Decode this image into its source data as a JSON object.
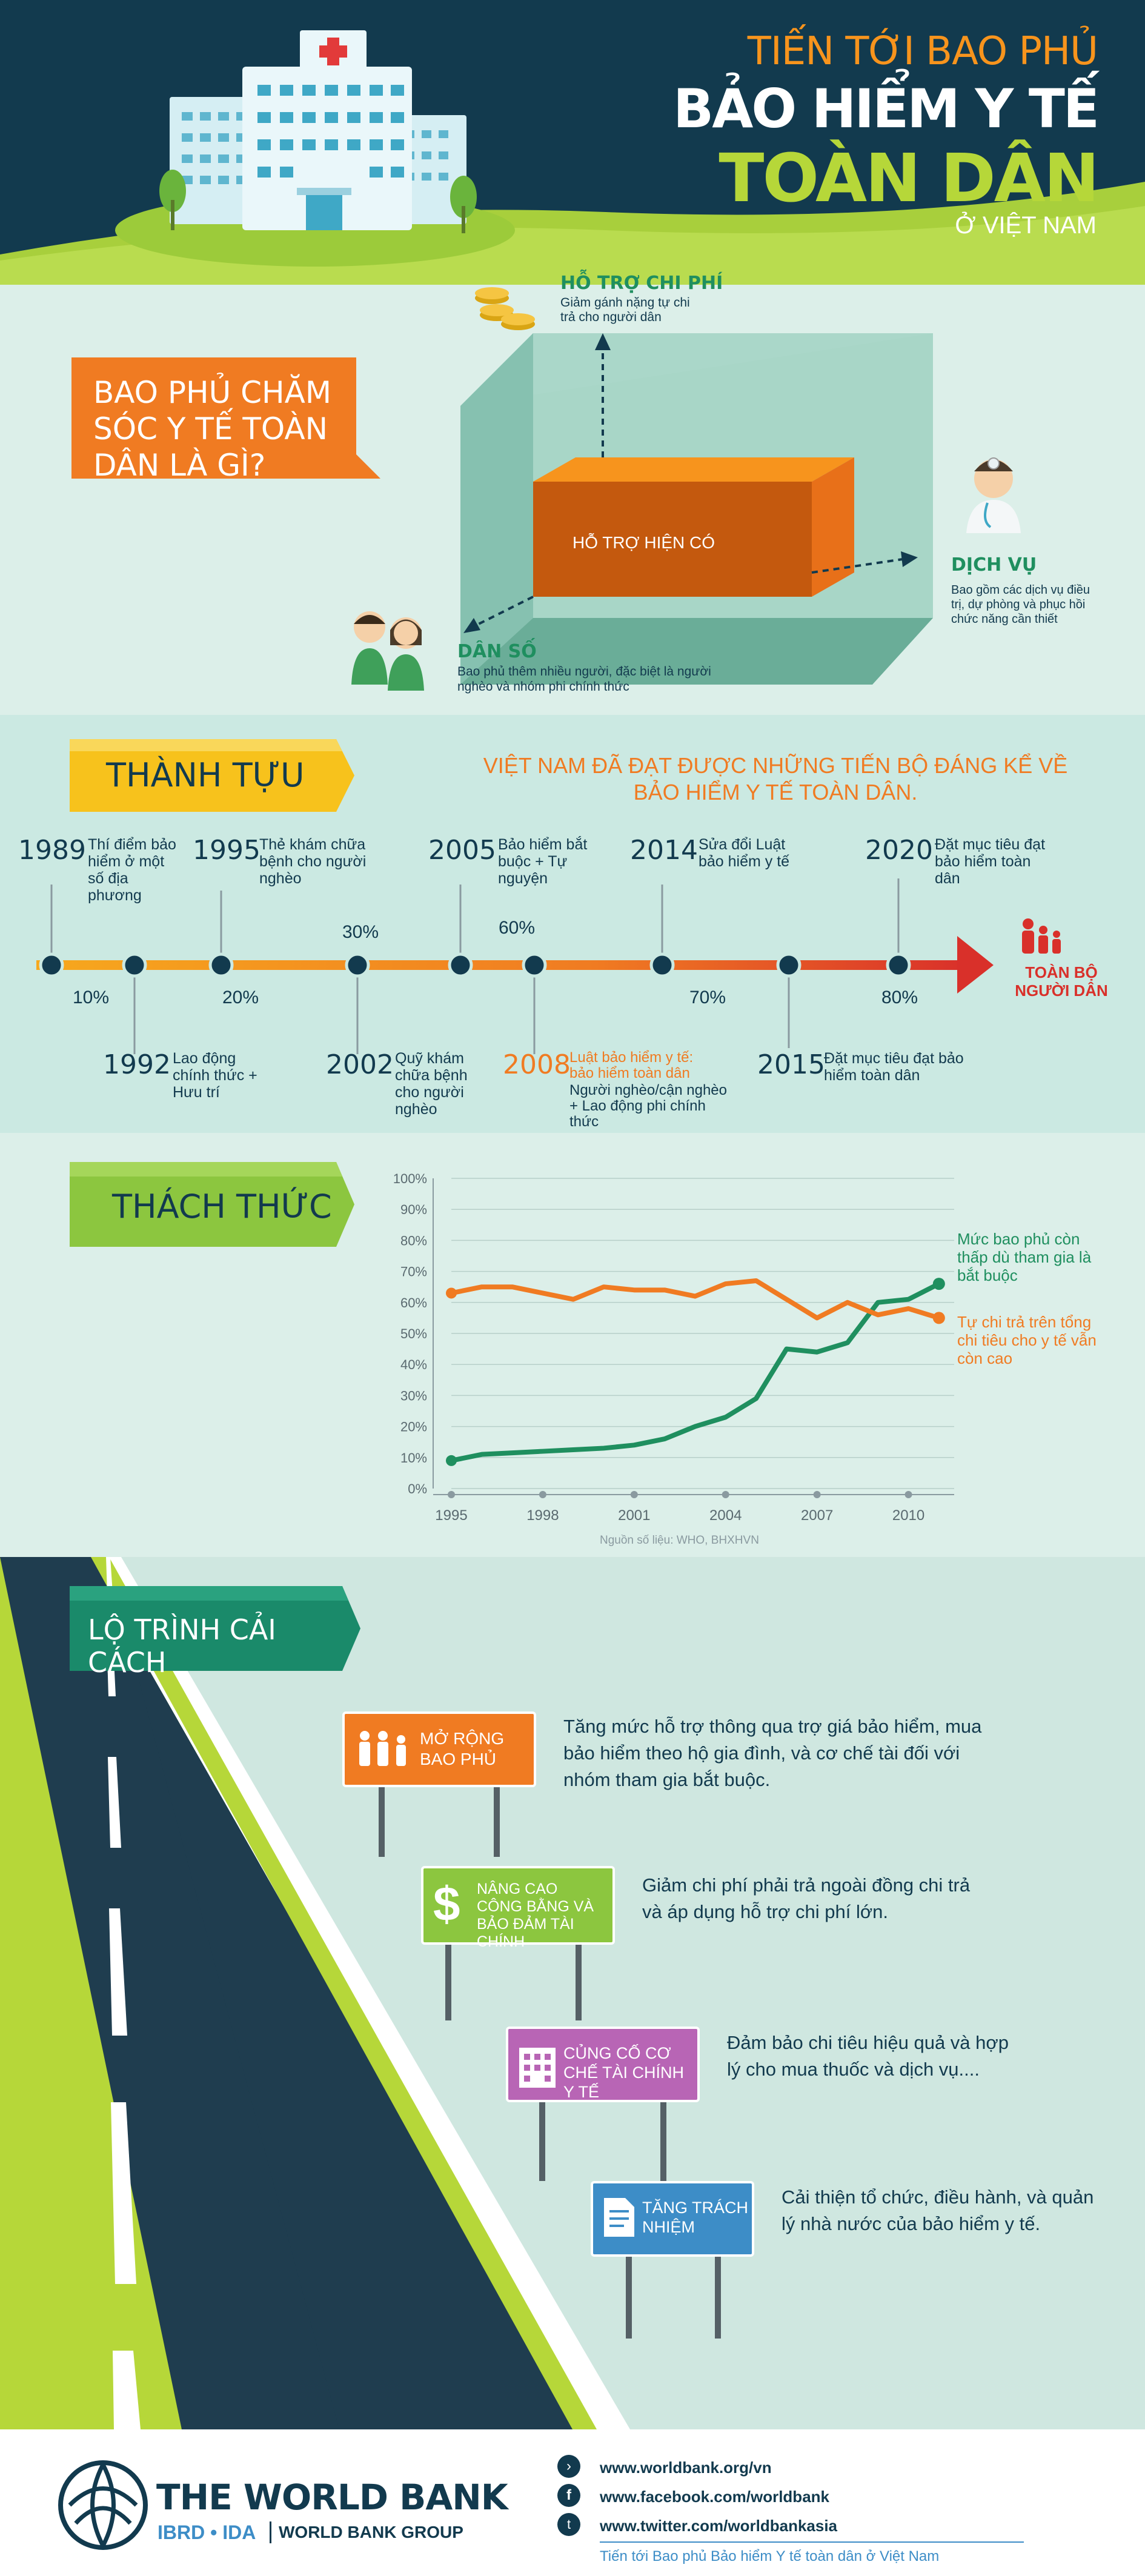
{
  "header": {
    "line1": "TIẾN TỚI BAO PHỦ",
    "line2": "BẢO HIỂM Y TẾ",
    "line3": "TOÀN DÂN",
    "line4": "Ở VIỆT NAM"
  },
  "what": {
    "question": "BAO PHỦ CHĂM SÓC Y TẾ TOÀN DÂN LÀ GÌ?",
    "box_label": "HỖ TRỢ HIỆN CÓ",
    "cost_title": "HỖ TRỢ CHI PHÍ",
    "cost_desc": "Giảm gánh nặng tự chi trả cho người dân",
    "service_title": "DỊCH VỤ",
    "service_desc": "Bao gồm các dịch vụ điều trị, dự phòng và phục hồi chức năng cần thiết",
    "pop_title": "DÂN SỐ",
    "pop_desc": "Bao phủ thêm nhiều người, đặc biệt là người nghèo và nhóm phi chính thức"
  },
  "achievements": {
    "title": "THÀNH TỰU",
    "headline": "VIỆT NAM ĐÃ ĐẠT ĐƯỢC NHỮNG TIẾN BỘ ĐÁNG KỂ VỀ BẢO HIỂM Y TẾ TOÀN DÂN.",
    "end_label": "TOÀN BỘ NGƯỜI DÂN",
    "top_events": [
      {
        "year": "1989",
        "desc": "Thí điểm bảo hiểm ở một số địa phương"
      },
      {
        "year": "1995",
        "desc": "Thẻ khám chữa bệnh cho người nghèo"
      },
      {
        "year": "2005",
        "desc": "Bảo hiểm bắt buộc + Tự nguyện"
      },
      {
        "year": "2014",
        "desc": "Sửa đổi Luật bảo hiểm y tế"
      },
      {
        "year": "2020",
        "desc": "Đặt mục tiêu đạt bảo hiểm toàn dân"
      }
    ],
    "bottom_events": [
      {
        "year": "1992",
        "desc": "Lao động chính thức + Hưu trí"
      },
      {
        "year": "2002",
        "desc": "Quỹ khám chữa bệnh cho người nghèo"
      },
      {
        "year": "2008",
        "desc_hl": "Luật bảo hiểm y tế: bảo hiểm toàn dân",
        "desc": "Người nghèo/cận nghèo + Lao động phi chính thức"
      },
      {
        "year": "2015",
        "desc": "Đặt mục tiêu đạt bảo hiểm toàn dân"
      }
    ],
    "percents_top": [
      "30%",
      "60%"
    ],
    "percents_bottom": [
      "10%",
      "20%",
      "70%",
      "80%"
    ]
  },
  "challenges": {
    "title": "THÁCH THỨC",
    "source": "Nguồn số liệu: WHO, BHXHVN"
  },
  "chart_data": {
    "type": "line",
    "x": [
      1995,
      1996,
      1997,
      1998,
      1999,
      2000,
      2001,
      2002,
      2003,
      2004,
      2005,
      2006,
      2007,
      2008,
      2009,
      2010,
      2011
    ],
    "xticks": [
      "1995",
      "1998",
      "2001",
      "2004",
      "2007",
      "2010"
    ],
    "yticks": [
      "0%",
      "10%",
      "20%",
      "30%",
      "40%",
      "50%",
      "60%",
      "70%",
      "80%",
      "90%",
      "100%"
    ],
    "ylim": [
      0,
      100
    ],
    "xlim": [
      1995,
      2011.5
    ],
    "series": [
      {
        "name": "Mức bao phủ còn thấp dù tham gia là bắt buộc",
        "color": "#1f8f5f",
        "values": [
          9,
          11,
          11.5,
          12,
          12.5,
          13,
          14,
          16,
          20,
          23,
          29,
          45,
          44,
          47,
          60,
          61,
          66
        ]
      },
      {
        "name": "Tự chi trả trên tổng chi tiêu cho y tế vẫn còn cao",
        "color": "#f07b22",
        "values": [
          63,
          65,
          65,
          63,
          61,
          65,
          64,
          64,
          62,
          66,
          67,
          61,
          55,
          60,
          56,
          58,
          55
        ]
      }
    ]
  },
  "roadmap": {
    "title": "LỘ TRÌNH CẢI CÁCH",
    "signs": [
      {
        "label": "MỞ RỘNG BAO PHỦ",
        "desc": "Tăng mức hỗ trợ thông qua trợ giá bảo hiểm, mua bảo hiểm theo hộ gia đình, và cơ chế tài đối với nhóm tham gia bắt buộc.",
        "color": "#f07b22"
      },
      {
        "label": "NÂNG CAO CÔNG BẰNG VÀ BẢO ĐẢM TÀI CHÍNH",
        "desc": "Giảm chi phí phải trả ngoài đồng chi trả và áp dụng hỗ trợ chi phí lớn.",
        "color": "#8cc63f"
      },
      {
        "label": "CỦNG CỐ CƠ CHẾ TÀI CHÍNH Y TẾ",
        "desc": "Đảm bảo chi tiêu hiệu quả và hợp lý cho mua thuốc và dịch vụ....",
        "color": "#b865b5"
      },
      {
        "label": "TĂNG TRÁCH NHIỆM",
        "desc": "Cải thiện tổ chức, điều hành, và quản lý nhà nước của bảo hiểm y tế.",
        "color": "#3d8dc7"
      }
    ]
  },
  "footer": {
    "org": "THE WORLD BANK",
    "sub1": "IBRD • IDA",
    "sub2": "WORLD BANK GROUP",
    "links": [
      "www.worldbank.org/vn",
      "www.facebook.com/worldbank",
      "www.twitter.com/worldbankasia"
    ],
    "caption": "Tiến tới Bao phủ Bảo hiểm Y tế toàn dân ở Việt Nam"
  }
}
